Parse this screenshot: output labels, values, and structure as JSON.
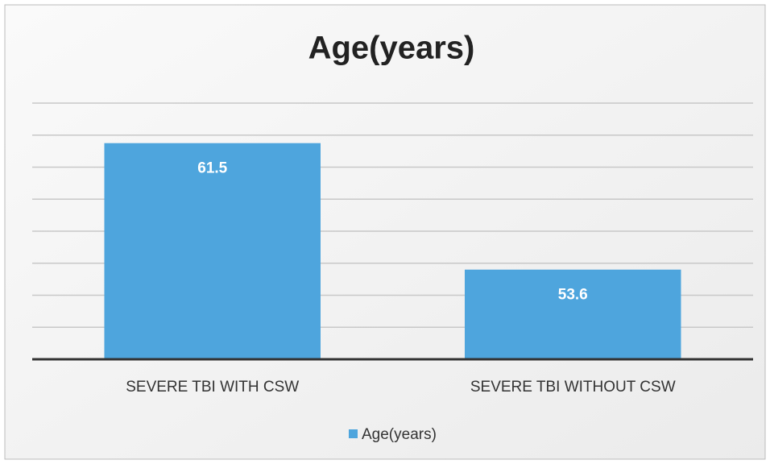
{
  "chart_data": {
    "type": "bar",
    "title": "Age(years)",
    "categories": [
      "SEVERE TBI WITH CSW",
      "SEVERE TBI WITHOUT CSW"
    ],
    "series": [
      {
        "name": "Age(years)",
        "color": "#4ea5dd",
        "values": [
          61.5,
          53.6
        ]
      }
    ],
    "ylim": [
      48,
      64
    ],
    "yticks": [
      48,
      50,
      52,
      54,
      56,
      58,
      60,
      62,
      64
    ],
    "grid": true,
    "legend": "bottom"
  }
}
